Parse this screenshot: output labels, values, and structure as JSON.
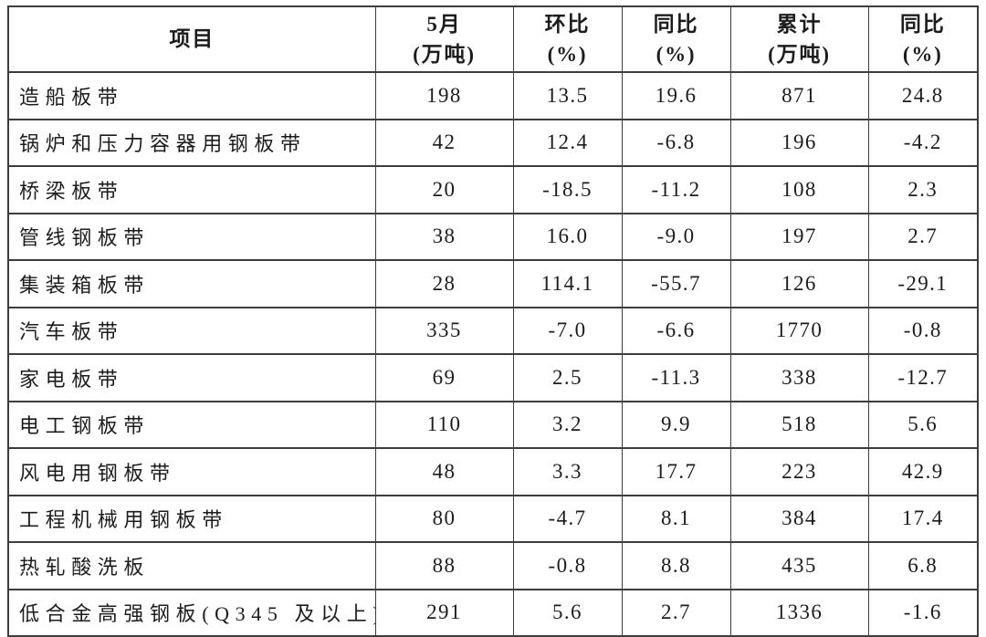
{
  "page": {
    "background_color": "#ffffff",
    "border_color": "#3d3d3d",
    "text_color": "#1c1c1c"
  },
  "table": {
    "header": [
      {
        "key": "item",
        "title": "项目",
        "unit": ""
      },
      {
        "key": "may-volume",
        "title": "5月",
        "unit": "(万吨)"
      },
      {
        "key": "mom-change",
        "title": "环比",
        "unit": "(%)"
      },
      {
        "key": "yoy-change",
        "title": "同比",
        "unit": "(%)"
      },
      {
        "key": "cumulative",
        "title": "累计",
        "unit": "(万吨)"
      },
      {
        "key": "cum-yoy",
        "title": "同比",
        "unit": "(%)"
      }
    ],
    "rows": [
      {
        "item": "造船板带",
        "values": [
          "198",
          "13.5",
          "19.6",
          "871",
          "24.8"
        ]
      },
      {
        "item": "锅炉和压力容器用钢板带",
        "values": [
          "42",
          "12.4",
          "-6.8",
          "196",
          "-4.2"
        ]
      },
      {
        "item": "桥梁板带",
        "values": [
          "20",
          "-18.5",
          "-11.2",
          "108",
          "2.3"
        ]
      },
      {
        "item": "管线钢板带",
        "values": [
          "38",
          "16.0",
          "-9.0",
          "197",
          "2.7"
        ]
      },
      {
        "item": "集装箱板带",
        "values": [
          "28",
          "114.1",
          "-55.7",
          "126",
          "-29.1"
        ]
      },
      {
        "item": "汽车板带",
        "values": [
          "335",
          "-7.0",
          "-6.6",
          "1770",
          "-0.8"
        ]
      },
      {
        "item": "家电板带",
        "values": [
          "69",
          "2.5",
          "-11.3",
          "338",
          "-12.7"
        ]
      },
      {
        "item": "电工钢板带",
        "values": [
          "110",
          "3.2",
          "9.9",
          "518",
          "5.6"
        ]
      },
      {
        "item": "风电用钢板带",
        "values": [
          "48",
          "3.3",
          "17.7",
          "223",
          "42.9"
        ]
      },
      {
        "item": "工程机械用钢板带",
        "values": [
          "80",
          "-4.7",
          "8.1",
          "384",
          "17.4"
        ]
      },
      {
        "item": "热轧酸洗板",
        "values": [
          "88",
          "-0.8",
          "8.8",
          "435",
          "6.8"
        ]
      },
      {
        "item": "低合金高强钢板(Q345 及以上)",
        "values": [
          "291",
          "5.6",
          "2.7",
          "1336",
          "-1.6"
        ]
      }
    ]
  },
  "chart_data": {
    "type": "table",
    "columns": [
      "项目",
      "5月(万吨)",
      "环比(%)",
      "同比(%)",
      "累计(万吨)",
      "同比(%)"
    ],
    "rows": [
      [
        "造船板带",
        198,
        13.5,
        19.6,
        871,
        24.8
      ],
      [
        "锅炉和压力容器用钢板带",
        42,
        12.4,
        -6.8,
        196,
        -4.2
      ],
      [
        "桥梁板带",
        20,
        -18.5,
        -11.2,
        108,
        2.3
      ],
      [
        "管线钢板带",
        38,
        16.0,
        -9.0,
        197,
        2.7
      ],
      [
        "集装箱板带",
        28,
        114.1,
        -55.7,
        126,
        -29.1
      ],
      [
        "汽车板带",
        335,
        -7.0,
        -6.6,
        1770,
        -0.8
      ],
      [
        "家电板带",
        69,
        2.5,
        -11.3,
        338,
        -12.7
      ],
      [
        "电工钢板带",
        110,
        3.2,
        9.9,
        518,
        5.6
      ],
      [
        "风电用钢板带",
        48,
        3.3,
        17.7,
        223,
        42.9
      ],
      [
        "工程机械用钢板带",
        80,
        -4.7,
        8.1,
        384,
        17.4
      ],
      [
        "热轧酸洗板",
        88,
        -0.8,
        8.8,
        435,
        6.8
      ],
      [
        "低合金高强钢板(Q345 及以上)",
        291,
        5.6,
        2.7,
        1336,
        -1.6
      ]
    ]
  }
}
